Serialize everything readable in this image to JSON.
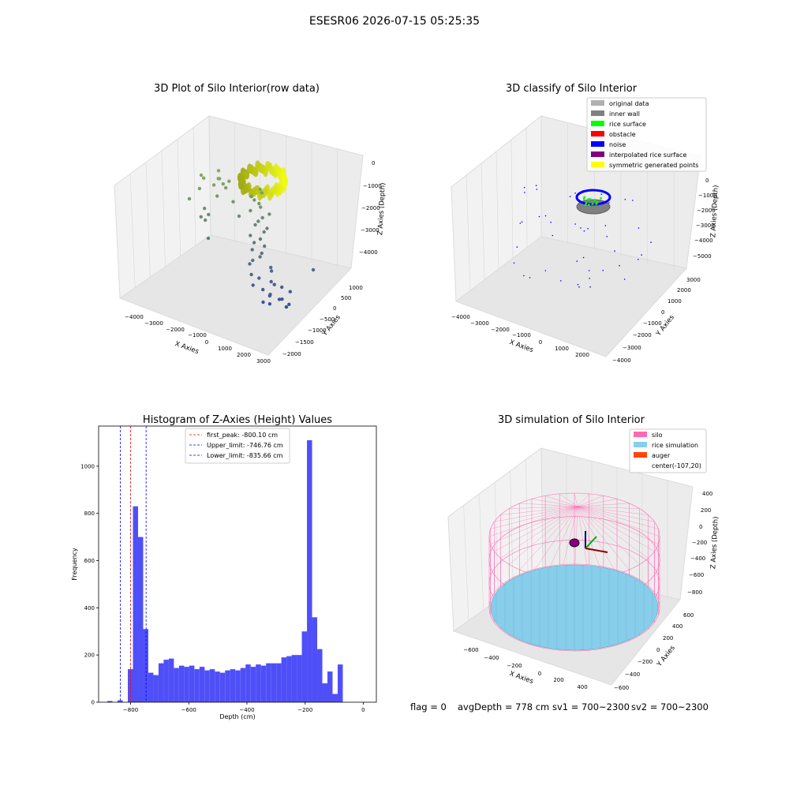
{
  "suptitle": "ESESR06 2026-07-15 05:25:35",
  "status_line": {
    "flag": "flag = 0",
    "avg_depth": "avgDepth = 778 cm",
    "sv1": "sv1 = 700~2300",
    "sv2": "sv2 = 700~2300"
  },
  "chart_data": [
    {
      "type": "scatter",
      "title": "3D Plot of Silo Interior(row data)",
      "xlabel": "X Axies",
      "ylabel": "Y Axies",
      "zlabel": "Z Axies (Depth)",
      "x_ticks": [
        "−4000",
        "−3000",
        "−2000",
        "−1000",
        "0",
        "1000",
        "2000",
        "3000"
      ],
      "y_ticks": [
        "−2000",
        "−1500",
        "−1000",
        "−500",
        "0",
        "500",
        "1000"
      ],
      "z_ticks": [
        "−4000",
        "−3000",
        "−2000",
        "−1000",
        "0"
      ],
      "colormap_note": "viridis",
      "ring_color": "#e8e81a"
    },
    {
      "type": "scatter",
      "title": "3D classify of Silo Interior",
      "xlabel": "X Axies",
      "ylabel": "Y Axies",
      "zlabel": "Z Axies (Depth)",
      "x_ticks": [
        "−4000",
        "−3000",
        "−2000",
        "−1000",
        "0",
        "1000",
        "2000"
      ],
      "y_ticks": [
        "−4000",
        "−3000",
        "−2000",
        "−1000",
        "0",
        "1000",
        "2000",
        "3000"
      ],
      "z_ticks": [
        "−5000",
        "−4000",
        "−3000",
        "−2000",
        "−1000",
        "0"
      ],
      "legend": [
        {
          "label": "original data",
          "color": "#b0b0b0"
        },
        {
          "label": "inner wall",
          "color": "#808080"
        },
        {
          "label": "rice surface",
          "color": "#00ff00"
        },
        {
          "label": "obstacle",
          "color": "#ff0000"
        },
        {
          "label": "noise",
          "color": "#0000ff"
        },
        {
          "label": "interpolated rice surface",
          "color": "#800080"
        },
        {
          "label": "symmetric generated points",
          "color": "#ffff00"
        }
      ],
      "legend_position": "top-right"
    },
    {
      "type": "bar",
      "title": "Histogram of Z-Axies (Height) Values",
      "xlabel": "Depth (cm)",
      "ylabel": "Frequency",
      "xlim": [
        -910,
        45
      ],
      "ylim": [
        0,
        1170
      ],
      "x_ticks": [
        -800,
        -600,
        -400,
        -200,
        0
      ],
      "x_tick_labels": [
        "−800",
        "−600",
        "−400",
        "−200",
        "0"
      ],
      "y_ticks": [
        0,
        200,
        400,
        600,
        800,
        1000
      ],
      "bin_start": -880,
      "bin_width": 17.6,
      "values": [
        5,
        0,
        8,
        0,
        140,
        830,
        700,
        310,
        125,
        115,
        165,
        180,
        185,
        145,
        155,
        150,
        155,
        140,
        150,
        135,
        140,
        130,
        125,
        135,
        140,
        135,
        145,
        160,
        150,
        160,
        155,
        165,
        165,
        165,
        190,
        195,
        200,
        200,
        300,
        1110,
        360,
        225,
        80,
        130,
        35,
        160
      ],
      "bar_color": "#4f4ff8",
      "vlines": [
        {
          "label": "first_peak: -800.10 cm",
          "x": -800.1,
          "color": "#ff0000"
        },
        {
          "label": "Upper_limit: -746.76 cm",
          "x": -746.76,
          "color": "#0000ff"
        },
        {
          "label": "Lower_limit: -835.66 cm",
          "x": -835.66,
          "color": "#0000ff"
        }
      ],
      "legend_position": "top-center"
    },
    {
      "type": "surface",
      "title": "3D simulation of Silo Interior",
      "xlabel": "X Axies",
      "ylabel": "Y Axies",
      "zlabel": "Z Axies (Depth)",
      "x_ticks": [
        "−600",
        "−400",
        "−200",
        "0",
        "200",
        "400"
      ],
      "y_ticks": [
        "−600",
        "−400",
        "−200",
        "0",
        "200",
        "400",
        "600"
      ],
      "z_ticks": [
        "−800",
        "−600",
        "−400",
        "−200",
        "0",
        "200",
        "400"
      ],
      "legend": [
        {
          "label": "silo",
          "color": "#ff69b4"
        },
        {
          "label": "rice simulation",
          "color": "#87ceeb"
        },
        {
          "label": "auger",
          "color": "#ff4500"
        },
        {
          "label": "center(-107,20)",
          "color": ""
        }
      ],
      "legend_position": "top-right"
    }
  ]
}
